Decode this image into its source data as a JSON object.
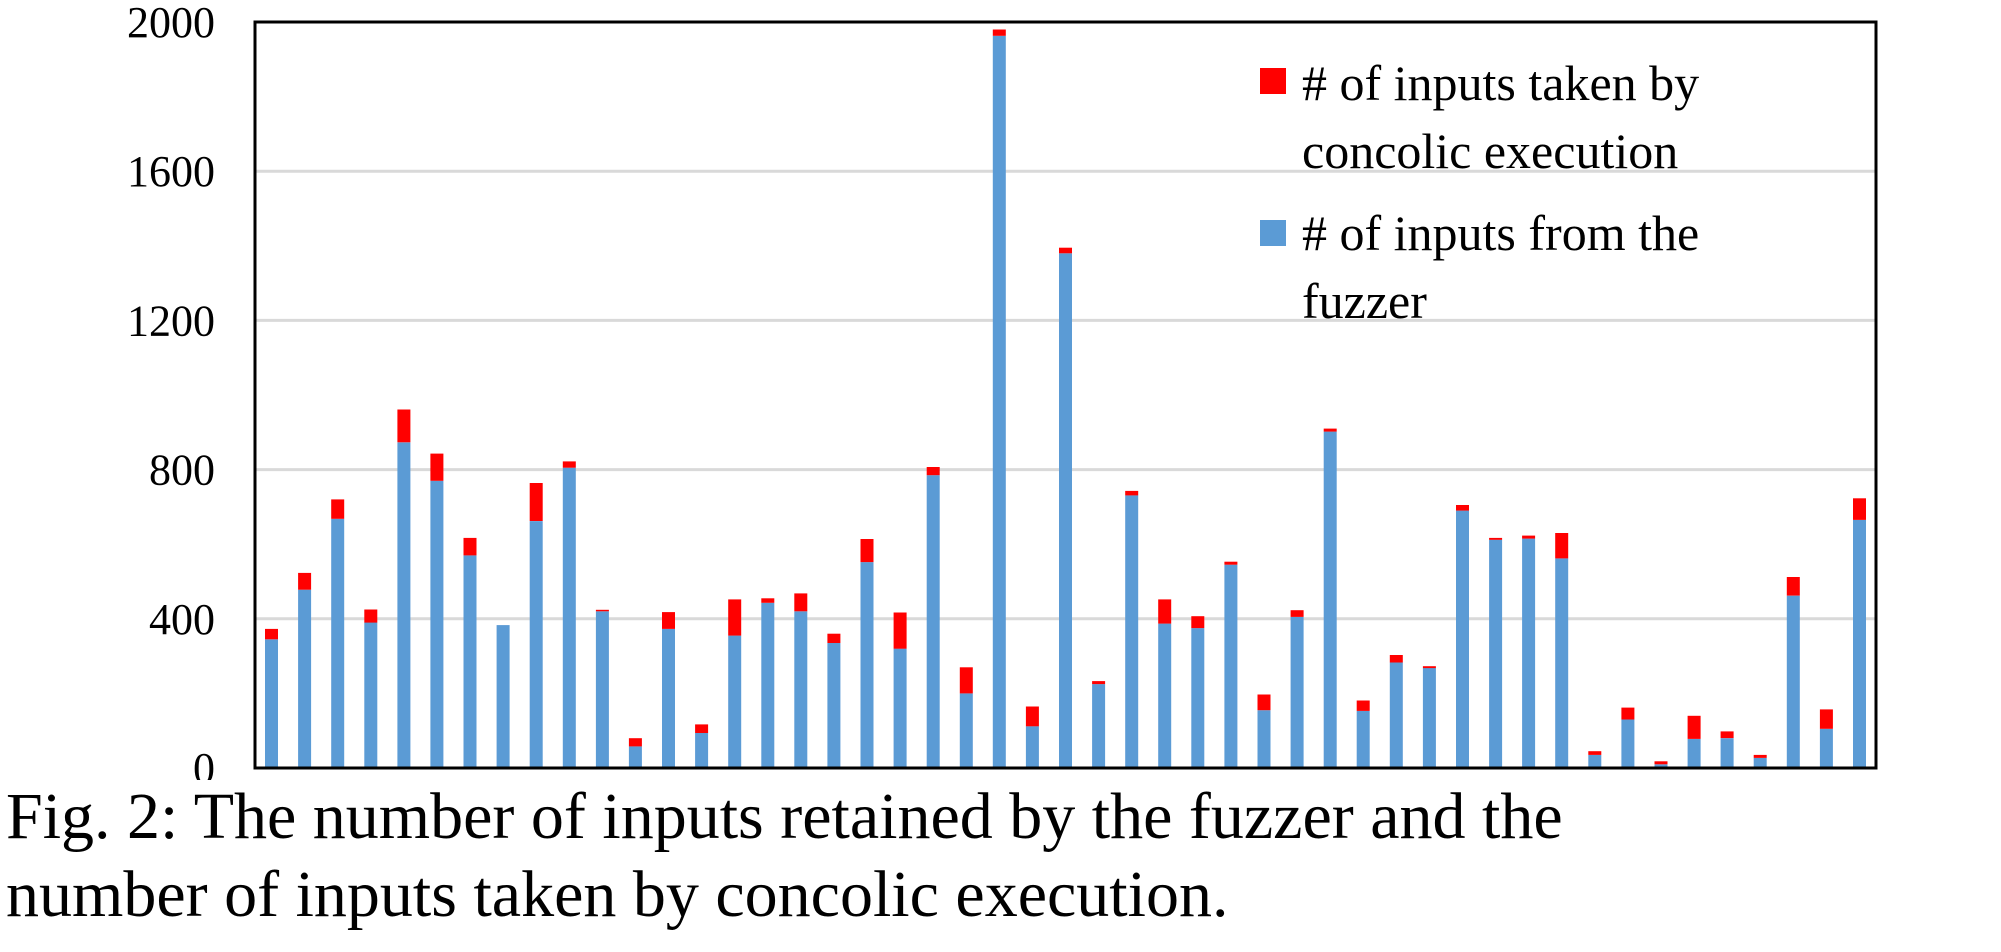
{
  "chart_data": {
    "type": "bar",
    "stacked": true,
    "ylim": [
      0,
      2000
    ],
    "yticks": [
      "0",
      "400",
      "800",
      "1200",
      "1600",
      "2000"
    ],
    "grid": true,
    "legend_position": "top-right",
    "series": [
      {
        "name": "# of inputs from the fuzzer",
        "color": "#5B9BD5",
        "values": [
          345,
          478,
          668,
          390,
          873,
          770,
          570,
          383,
          662,
          805,
          420,
          58,
          373,
          94,
          355,
          443,
          420,
          335,
          552,
          320,
          785,
          200,
          1963,
          112,
          1380,
          225,
          731,
          387,
          375,
          545,
          155,
          405,
          902,
          153,
          283,
          268,
          690,
          612,
          615,
          562,
          35,
          130,
          10,
          78,
          80,
          27,
          462,
          105,
          665
        ]
      },
      {
        "name": "# of inputs taken by concolic execution",
        "color": "#FF0000",
        "values": [
          28,
          45,
          52,
          35,
          88,
          73,
          47,
          0,
          102,
          17,
          4,
          22,
          45,
          23,
          97,
          12,
          48,
          25,
          62,
          97,
          22,
          70,
          17,
          53,
          15,
          8,
          12,
          65,
          32,
          8,
          42,
          18,
          8,
          28,
          20,
          5,
          15,
          5,
          8,
          68,
          10,
          32,
          8,
          62,
          18,
          8,
          50,
          52,
          58
        ]
      }
    ]
  },
  "caption": {
    "line1": "Fig. 2: The number of inputs retained by the fuzzer and the",
    "line2": "number of inputs taken by concolic execution."
  },
  "legend": {
    "concolic_line1": "# of inputs taken by",
    "concolic_line2": "concolic execution",
    "fuzzer_line1": "# of inputs from the",
    "fuzzer_line2": "fuzzer"
  }
}
